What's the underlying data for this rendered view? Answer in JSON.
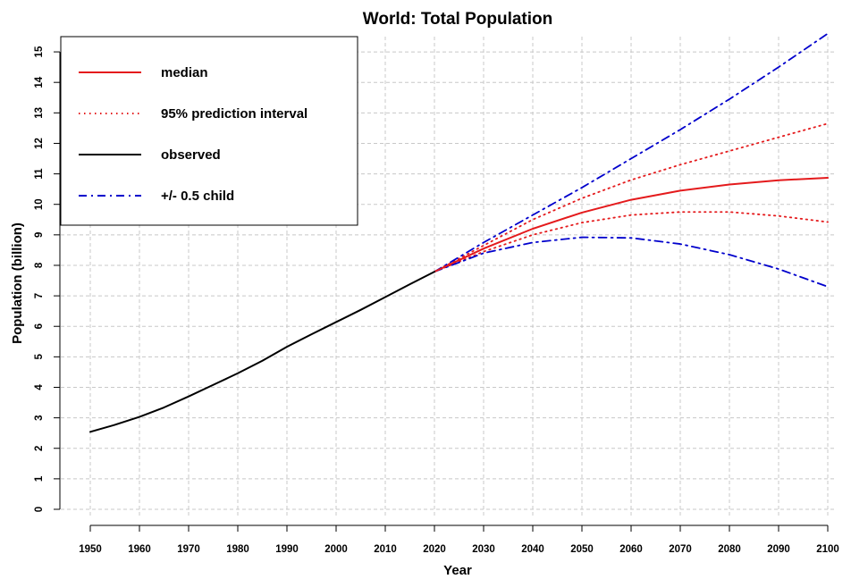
{
  "chart_data": {
    "type": "line",
    "title": "World: Total Population",
    "xlabel": "Year",
    "ylabel": "Population (billion)",
    "xlim": [
      1950,
      2100
    ],
    "ylim": [
      0,
      15.5
    ],
    "x_ticks": [
      1950,
      1960,
      1970,
      1980,
      1990,
      2000,
      2010,
      2020,
      2030,
      2040,
      2050,
      2060,
      2070,
      2080,
      2090,
      2100
    ],
    "y_ticks": [
      0,
      1,
      2,
      3,
      4,
      5,
      6,
      7,
      8,
      9,
      10,
      11,
      12,
      13,
      14,
      15
    ],
    "grid": true,
    "legend_position": "top-left",
    "series": [
      {
        "name": "observed",
        "color": "#000000",
        "style": "solid",
        "x": [
          1950,
          1955,
          1960,
          1965,
          1970,
          1975,
          1980,
          1985,
          1990,
          1995,
          2000,
          2005,
          2010,
          2015,
          2020
        ],
        "y": [
          2.54,
          2.77,
          3.03,
          3.34,
          3.7,
          4.08,
          4.46,
          4.87,
          5.33,
          5.74,
          6.14,
          6.54,
          6.96,
          7.38,
          7.79
        ]
      },
      {
        "name": "median",
        "color": "#e41a1c",
        "style": "solid",
        "x": [
          2020,
          2030,
          2040,
          2050,
          2060,
          2070,
          2080,
          2090,
          2100
        ],
        "y": [
          7.79,
          8.55,
          9.2,
          9.73,
          10.15,
          10.45,
          10.65,
          10.79,
          10.87
        ]
      },
      {
        "name": "95% prediction interval",
        "color": "#e41a1c",
        "style": "dotted",
        "x": [
          2020,
          2030,
          2040,
          2050,
          2060,
          2070,
          2080,
          2090,
          2100
        ],
        "y": [
          7.79,
          8.65,
          9.5,
          10.2,
          10.8,
          11.3,
          11.75,
          12.2,
          12.65
        ]
      },
      {
        "name": "95% prediction interval",
        "color": "#e41a1c",
        "style": "dotted",
        "x": [
          2020,
          2030,
          2040,
          2050,
          2060,
          2070,
          2080,
          2090,
          2100
        ],
        "y": [
          7.79,
          8.45,
          9.0,
          9.4,
          9.65,
          9.75,
          9.75,
          9.62,
          9.42
        ]
      },
      {
        "name": "+/- 0.5 child",
        "color": "#0000cc",
        "style": "dashdot",
        "x": [
          2020,
          2030,
          2040,
          2050,
          2060,
          2070,
          2080,
          2090,
          2100
        ],
        "y": [
          7.79,
          8.75,
          9.65,
          10.55,
          11.5,
          12.45,
          13.45,
          14.5,
          15.6
        ]
      },
      {
        "name": "+/- 0.5 child",
        "color": "#0000cc",
        "style": "dashdot",
        "x": [
          2020,
          2030,
          2040,
          2050,
          2060,
          2070,
          2080,
          2090,
          2100
        ],
        "y": [
          7.79,
          8.4,
          8.75,
          8.92,
          8.9,
          8.7,
          8.35,
          7.88,
          7.3
        ]
      }
    ],
    "legend": [
      {
        "label": "median",
        "color": "#e41a1c",
        "style": "solid"
      },
      {
        "label": "95% prediction interval",
        "color": "#e41a1c",
        "style": "dotted"
      },
      {
        "label": "observed",
        "color": "#000000",
        "style": "solid"
      },
      {
        "label": "+/- 0.5 child",
        "color": "#0000cc",
        "style": "dashdot"
      }
    ]
  }
}
